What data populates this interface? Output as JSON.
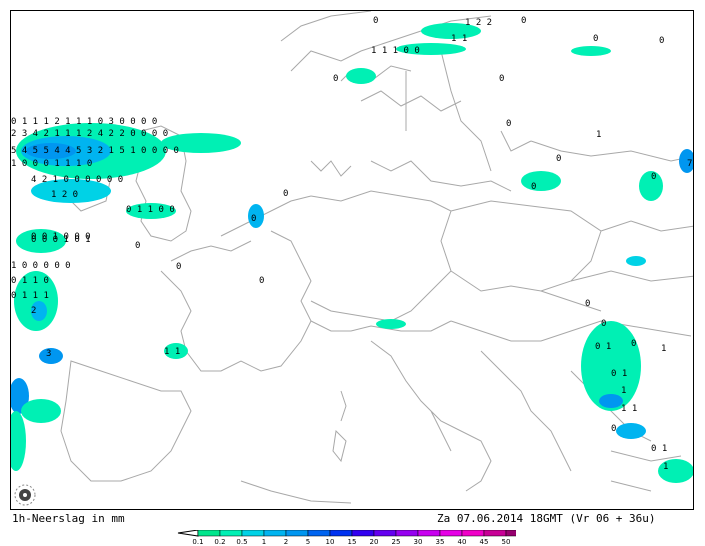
{
  "caption_left": "1h-Neerslag in mm",
  "caption_right": "Za 07.06.2014 18GMT (Vr 06 + 36u)",
  "logo_icon": "spiral-logo-icon",
  "legend": {
    "labels": [
      "0.1",
      "0.2",
      "0.5",
      "1",
      "2",
      "5",
      "10",
      "15",
      "20",
      "25",
      "30",
      "35",
      "40",
      "45",
      "50"
    ],
    "colors": [
      "#00e68c",
      "#00f0b4",
      "#00d2e6",
      "#00b4f0",
      "#0096f0",
      "#0064f0",
      "#0032f0",
      "#3200f0",
      "#6400f0",
      "#9600f0",
      "#c800f0",
      "#e600e6",
      "#f000c8",
      "#c80096",
      "#96006e"
    ]
  },
  "precip_labels": [
    {
      "t": "0"
    },
    {
      "t": "1 2 2"
    },
    {
      "t": "0"
    },
    {
      "t": "1 1"
    },
    {
      "t": "0"
    },
    {
      "t": "1 1 1 0 0"
    },
    {
      "t": "0"
    },
    {
      "t": "0"
    },
    {
      "t": "0"
    },
    {
      "t": "0 1 1 1 2 1 1   1 0 3 0 0 0 0"
    },
    {
      "t": "2 3 4 2 1 1 1 2 4 2 2 0 0 0 0"
    },
    {
      "t": "5 4 5 5 4 4 5 3 2 1 5 1 0 0 0 0"
    },
    {
      "t": "1 0 0 0       1 1         1 0"
    },
    {
      "t": "4 2 1 0 0   0       0   0   0"
    },
    {
      "t": "1 2 0"
    },
    {
      "t": "0 1 1 0 0"
    },
    {
      "t": "0 0 1 0 0 0"
    },
    {
      "t": "0 0 0 1 0 1"
    },
    {
      "t": "1 0   0   0 0 0"
    },
    {
      "t": "0 1 1 0"
    },
    {
      "t": "0 1 1 1"
    },
    {
      "t": "2"
    },
    {
      "t": "3"
    },
    {
      "t": "1 1"
    },
    {
      "t": "0"
    },
    {
      "t": "0"
    },
    {
      "t": "0"
    },
    {
      "t": "0"
    },
    {
      "t": "0"
    },
    {
      "t": "0"
    },
    {
      "t": "1"
    },
    {
      "t": "0"
    },
    {
      "t": "7"
    },
    {
      "t": "0"
    },
    {
      "t": "0"
    },
    {
      "t": "0"
    },
    {
      "t": "0"
    },
    {
      "t": "0 1"
    },
    {
      "t": "1"
    },
    {
      "t": "0"
    },
    {
      "t": "0 1"
    },
    {
      "t": "1"
    },
    {
      "t": "1 1"
    },
    {
      "t": "0"
    },
    {
      "t": "0 1"
    },
    {
      "t": "1"
    }
  ]
}
